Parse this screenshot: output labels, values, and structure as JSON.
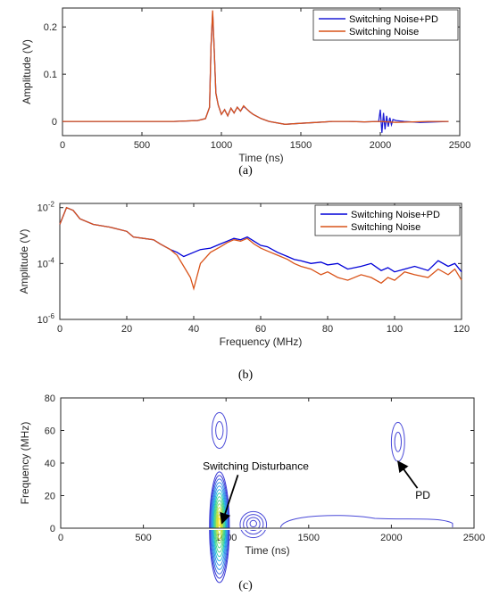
{
  "chart_data": [
    {
      "type": "line",
      "caption": "(a)",
      "xlabel": "Time (ns)",
      "ylabel": "Amplitude (V)",
      "xlim": [
        0,
        2500
      ],
      "ylim": [
        -0.03,
        0.24
      ],
      "xticks": [
        "0",
        "500",
        "1000",
        "1500",
        "2000",
        "2500"
      ],
      "yticks": [
        "0",
        "0.1",
        "0.2"
      ],
      "legend": "top-right",
      "series": [
        {
          "name": "Switching Noise+PD",
          "color": "#1f1fd6",
          "x": [
            0,
            700,
            850,
            900,
            925,
            935,
            945,
            955,
            965,
            980,
            1000,
            1020,
            1040,
            1060,
            1080,
            1100,
            1120,
            1140,
            1160,
            1180,
            1200,
            1250,
            1300,
            1400,
            1500,
            1600,
            1700,
            1800,
            1900,
            1990,
            2000,
            2010,
            2020,
            2030,
            2040,
            2050,
            2060,
            2070,
            2080,
            2100,
            2150,
            2250,
            2430
          ],
          "y": [
            0,
            0,
            0.002,
            0.006,
            0.03,
            0.16,
            0.23,
            0.15,
            0.06,
            0.035,
            0.015,
            0.025,
            0.012,
            0.028,
            0.018,
            0.03,
            0.022,
            0.032,
            0.026,
            0.02,
            0.015,
            0.006,
            0,
            -0.006,
            -0.004,
            -0.002,
            0,
            0,
            -0.001,
            0,
            0.025,
            -0.024,
            0.018,
            -0.017,
            0.012,
            -0.011,
            0.008,
            -0.007,
            0.004,
            0.002,
            0,
            -0.002,
            0
          ]
        },
        {
          "name": "Switching Noise",
          "color": "#d95319",
          "x": [
            0,
            700,
            850,
            900,
            925,
            935,
            945,
            955,
            965,
            980,
            1000,
            1020,
            1040,
            1060,
            1080,
            1100,
            1120,
            1140,
            1160,
            1180,
            1200,
            1250,
            1300,
            1400,
            1500,
            1600,
            1700,
            1800,
            1900,
            2000,
            2100,
            2200,
            2300,
            2430
          ],
          "y": [
            0,
            0,
            0.002,
            0.006,
            0.03,
            0.16,
            0.235,
            0.15,
            0.06,
            0.035,
            0.015,
            0.025,
            0.012,
            0.028,
            0.018,
            0.03,
            0.022,
            0.033,
            0.026,
            0.02,
            0.015,
            0.006,
            0,
            -0.006,
            -0.004,
            -0.002,
            0,
            0,
            -0.001,
            0,
            -0.002,
            -0.001,
            0,
            0
          ]
        }
      ]
    },
    {
      "type": "line",
      "caption": "(b)",
      "xlabel": "Frequency (MHz)",
      "ylabel": "Amplitude (V)",
      "xlim": [
        0,
        120
      ],
      "ylim": [
        -6,
        -1.85
      ],
      "yscale": "log",
      "xticks": [
        "0",
        "20",
        "40",
        "60",
        "80",
        "100",
        "120"
      ],
      "yticks": [
        "10-6",
        "10-4",
        "10-2"
      ],
      "legend": "top-right",
      "series": [
        {
          "name": "Switching Noise+PD",
          "color": "#0000d8",
          "x": [
            0,
            2,
            4,
            6,
            10,
            15,
            20,
            22,
            25,
            28,
            30,
            33,
            35,
            37,
            40,
            42,
            45,
            48,
            50,
            52,
            54,
            56,
            58,
            60,
            62,
            65,
            68,
            70,
            72,
            75,
            78,
            80,
            83,
            86,
            90,
            93,
            96,
            98,
            100,
            103,
            106,
            110,
            113,
            116,
            118,
            120
          ],
          "y": [
            -2.6,
            -2.0,
            -2.1,
            -2.4,
            -2.6,
            -2.7,
            -2.85,
            -3.05,
            -3.1,
            -3.15,
            -3.3,
            -3.5,
            -3.6,
            -3.75,
            -3.6,
            -3.5,
            -3.45,
            -3.3,
            -3.2,
            -3.1,
            -3.15,
            -3.05,
            -3.2,
            -3.35,
            -3.4,
            -3.6,
            -3.75,
            -3.85,
            -3.9,
            -4.0,
            -3.95,
            -4.05,
            -4.0,
            -4.2,
            -4.1,
            -4.0,
            -4.25,
            -4.15,
            -4.3,
            -4.2,
            -4.1,
            -4.25,
            -3.9,
            -4.1,
            -4.0,
            -4.3
          ]
        },
        {
          "name": "Switching Noise",
          "color": "#d95319",
          "x": [
            0,
            2,
            4,
            6,
            10,
            15,
            20,
            22,
            25,
            28,
            30,
            33,
            35,
            37,
            39,
            40,
            42,
            45,
            48,
            50,
            52,
            54,
            56,
            58,
            60,
            62,
            65,
            68,
            70,
            72,
            75,
            78,
            80,
            83,
            86,
            90,
            93,
            96,
            98,
            100,
            103,
            106,
            110,
            113,
            116,
            118,
            120
          ],
          "y": [
            -2.6,
            -2.0,
            -2.1,
            -2.4,
            -2.6,
            -2.7,
            -2.85,
            -3.05,
            -3.1,
            -3.15,
            -3.3,
            -3.5,
            -3.7,
            -4.1,
            -4.5,
            -4.9,
            -4.0,
            -3.6,
            -3.4,
            -3.25,
            -3.15,
            -3.2,
            -3.1,
            -3.3,
            -3.45,
            -3.55,
            -3.7,
            -3.85,
            -4.0,
            -4.1,
            -4.2,
            -4.4,
            -4.3,
            -4.5,
            -4.6,
            -4.4,
            -4.5,
            -4.7,
            -4.5,
            -4.6,
            -4.3,
            -4.4,
            -4.5,
            -4.2,
            -4.4,
            -4.2,
            -4.6
          ]
        }
      ]
    },
    {
      "type": "contour",
      "caption": "(c)",
      "xlabel": "Time (ns)",
      "ylabel": "Frequency (MHz)",
      "xlim": [
        0,
        2500
      ],
      "ylim": [
        0,
        80
      ],
      "xticks": [
        "0",
        "500",
        "1000",
        "1500",
        "2000",
        "2500"
      ],
      "yticks": [
        "0",
        "20",
        "40",
        "60",
        "80"
      ],
      "line_color": "#4a4ad8",
      "blobs": [
        {
          "cx": 960,
          "cy": 4,
          "rx": 60,
          "ry": 34,
          "levels": 14
        },
        {
          "cx": 960,
          "cy": 60,
          "rx": 45,
          "ry": 11,
          "levels": 2
        },
        {
          "cx": 1165,
          "cy": 3,
          "rx": 80,
          "ry": 8,
          "levels": 4
        },
        {
          "cx": 2040,
          "cy": 53,
          "rx": 40,
          "ry": 12,
          "levels": 2
        }
      ],
      "annotations": [
        {
          "text": "Switching Disturbance",
          "text_x": 1180,
          "text_y": 36,
          "arrow_to": [
            975,
            3
          ]
        },
        {
          "text": "PD",
          "text_x": 2190,
          "text_y": 18,
          "arrow_to": [
            2040,
            41
          ]
        }
      ]
    }
  ]
}
